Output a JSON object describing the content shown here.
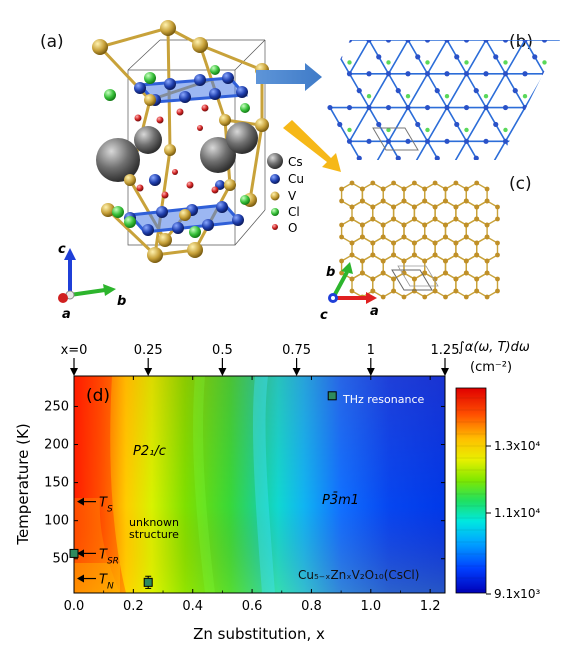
{
  "panels": {
    "a": "(a)",
    "b": "(b)",
    "c": "(c)",
    "d": "(d)"
  },
  "crystal_legend": [
    {
      "label": "Cs",
      "color": "#6b6b6b"
    },
    {
      "label": "Cu",
      "color": "#1f3fae"
    },
    {
      "label": "V",
      "color": "#c8a23a"
    },
    {
      "label": "Cl",
      "color": "#38c03a"
    },
    {
      "label": "O",
      "color": "#d02020"
    }
  ],
  "axes_a": {
    "c": "c",
    "b": "b",
    "a": "a"
  },
  "axes_bc": {
    "b": "b",
    "c": "c",
    "a": "a"
  },
  "chart_data": {
    "type": "heatmap",
    "xlabel": "Zn substitution, x",
    "ylabel": "Temperature (K)",
    "xlim": [
      0,
      1.25
    ],
    "ylim": [
      5,
      290
    ],
    "x_ticks": [
      "0.0",
      "0.2",
      "0.4",
      "0.6",
      "0.8",
      "1.0",
      "1.2"
    ],
    "y_ticks": [
      "50",
      "100",
      "150",
      "200",
      "250"
    ],
    "top_ticks": [
      "x=0",
      "0.25",
      "0.5",
      "0.75",
      "1",
      "1.25"
    ],
    "colorbar": {
      "title": "∫α(ω, T)dω",
      "unit": "(cm⁻²)",
      "ticks": [
        "1.3x10⁴",
        "1.1x10⁴",
        "9.1x10³"
      ]
    },
    "annotations": {
      "p21c": "P2₁/c",
      "p3m1": "P3̄m1",
      "unknown1": "unknown",
      "unknown2": "structure",
      "compound": "Cu₅₋ₓZnₓV₂O₁₀(CsCl)",
      "thz": "THz resonance",
      "ts": "T_S",
      "tsr": "T_SR",
      "tn": "T_N"
    },
    "transitions": [
      {
        "name": "T_S",
        "T": 125
      },
      {
        "name": "T_SR",
        "T": 57
      },
      {
        "name": "T_N",
        "T": 24
      }
    ],
    "data_points": [
      {
        "x": 0.0,
        "T": 57,
        "err": 4
      },
      {
        "x": 0.25,
        "T": 19,
        "err": 8
      },
      {
        "x": 0.87,
        "T": 264,
        "err": 0
      }
    ],
    "color_scale": {
      "min": 9100,
      "max": 14200,
      "colors": [
        "#0000c8",
        "#0050ff",
        "#00b4ff",
        "#00e0c0",
        "#30e030",
        "#c8f000",
        "#ffe000",
        "#ff9000",
        "#ff3000",
        "#e00000"
      ]
    }
  }
}
